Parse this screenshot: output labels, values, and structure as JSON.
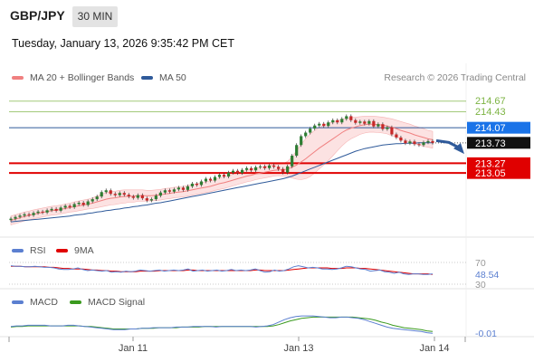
{
  "header": {
    "symbol": "GBP/JPY",
    "timeframe": "30 MIN",
    "datetime": "Tuesday, January 13, 2026 9:35:42 PM CET",
    "credit": "Research © 2026 Trading Central"
  },
  "colors": {
    "ma20": "#f08080",
    "ma50": "#2f5a9a",
    "band_fill": "#fbd5d5",
    "candle_up": "#2e7d32",
    "candle_down": "#c62828",
    "resistance": "#7cb342",
    "pivot": "#2f5a9a",
    "support": "#e00000",
    "price_tag": "#1a73e8",
    "rsi": "#5b7fd0",
    "ma9": "#e00000",
    "macd": "#5b7fd0",
    "macd_signal": "#3a9a1e",
    "arrow": "#2f5a9a"
  },
  "chart_data": [
    {
      "type": "candlestick",
      "title": "GBP/JPY 30 MIN",
      "legend": [
        "MA 20 + Bollinger Bands",
        "MA 50"
      ],
      "legend_position": "top-left",
      "x_tick_labels": [
        "Jan 11",
        "Jan 13",
        "Jan 14"
      ],
      "y_range": [
        211.85,
        214.95
      ],
      "grid": false,
      "levels": [
        {
          "label": "214.67",
          "value": 214.67,
          "kind": "resistance"
        },
        {
          "label": "214.43",
          "value": 214.43,
          "kind": "resistance"
        },
        {
          "label": "214.07",
          "value": 214.07,
          "kind": "pivot"
        },
        {
          "label": "213.27",
          "value": 213.27,
          "kind": "support"
        },
        {
          "label": "213.05",
          "value": 213.05,
          "kind": "support"
        }
      ],
      "last_price": {
        "label": "213.73",
        "value": 213.73
      },
      "forecast_arrow": {
        "from": 213.78,
        "to": 213.52,
        "direction": "down"
      },
      "close_values": [
        212.02,
        212.06,
        212.09,
        212.12,
        212.1,
        212.15,
        212.18,
        212.16,
        212.21,
        212.24,
        212.2,
        212.27,
        212.31,
        212.28,
        212.35,
        212.38,
        212.33,
        212.41,
        212.46,
        212.52,
        212.62,
        212.66,
        212.58,
        212.55,
        212.6,
        212.56,
        212.52,
        212.49,
        212.55,
        212.48,
        212.43,
        212.46,
        212.54,
        212.61,
        212.66,
        212.63,
        212.68,
        212.72,
        212.67,
        212.75,
        212.81,
        212.78,
        212.86,
        212.92,
        212.88,
        212.96,
        213.01,
        212.97,
        213.06,
        213.1,
        213.05,
        213.12,
        213.16,
        213.11,
        213.18,
        213.2,
        213.16,
        213.22,
        213.19,
        213.14,
        213.06,
        213.2,
        213.44,
        213.68,
        213.88,
        213.96,
        214.05,
        214.12,
        214.16,
        214.11,
        214.19,
        214.24,
        214.19,
        214.27,
        214.33,
        214.24,
        214.18,
        214.21,
        214.16,
        214.22,
        214.1,
        214.15,
        214.04,
        214.08,
        213.92,
        213.85,
        213.78,
        213.72,
        213.76,
        213.7,
        213.68,
        213.74,
        213.77,
        213.73
      ],
      "ma20": [
        211.98,
        212.01,
        212.04,
        212.07,
        212.09,
        212.12,
        212.14,
        212.16,
        212.18,
        212.2,
        212.21,
        212.23,
        212.25,
        212.27,
        212.29,
        212.31,
        212.33,
        212.35,
        212.37,
        212.4,
        212.43,
        212.46,
        212.48,
        212.49,
        212.51,
        212.52,
        212.53,
        212.53,
        212.54,
        212.54,
        212.54,
        212.54,
        212.55,
        212.56,
        212.58,
        212.59,
        212.61,
        212.62,
        212.63,
        212.65,
        212.67,
        212.69,
        212.71,
        212.73,
        212.75,
        212.78,
        212.81,
        212.83,
        212.86,
        212.89,
        212.92,
        212.95,
        212.98,
        213.0,
        213.03,
        213.05,
        213.07,
        213.09,
        213.11,
        213.12,
        213.12,
        213.14,
        213.18,
        213.23,
        213.3,
        213.37,
        213.45,
        213.53,
        213.61,
        213.68,
        213.75,
        213.82,
        213.89,
        213.96,
        214.02,
        214.06,
        214.09,
        214.12,
        214.14,
        214.15,
        214.15,
        214.14,
        214.13,
        214.11,
        214.08,
        214.05,
        214.01,
        213.98,
        213.95,
        213.91,
        213.88,
        213.85,
        213.82,
        213.8
      ],
      "band_width": [
        0.1,
        0.1,
        0.1,
        0.1,
        0.1,
        0.1,
        0.1,
        0.1,
        0.1,
        0.1,
        0.1,
        0.1,
        0.1,
        0.1,
        0.11,
        0.11,
        0.11,
        0.11,
        0.12,
        0.13,
        0.14,
        0.15,
        0.15,
        0.15,
        0.15,
        0.15,
        0.14,
        0.14,
        0.13,
        0.13,
        0.12,
        0.12,
        0.12,
        0.12,
        0.12,
        0.12,
        0.12,
        0.12,
        0.12,
        0.12,
        0.12,
        0.12,
        0.12,
        0.12,
        0.12,
        0.12,
        0.13,
        0.13,
        0.13,
        0.13,
        0.13,
        0.13,
        0.13,
        0.13,
        0.13,
        0.13,
        0.13,
        0.13,
        0.13,
        0.13,
        0.14,
        0.17,
        0.24,
        0.32,
        0.4,
        0.45,
        0.48,
        0.48,
        0.47,
        0.45,
        0.42,
        0.38,
        0.34,
        0.3,
        0.27,
        0.24,
        0.22,
        0.2,
        0.19,
        0.18,
        0.18,
        0.18,
        0.18,
        0.18,
        0.19,
        0.19,
        0.2,
        0.2,
        0.2,
        0.2,
        0.2,
        0.2,
        0.19,
        0.19
      ],
      "ma50": [
        211.95,
        211.96,
        211.97,
        211.98,
        211.99,
        212.0,
        212.01,
        212.02,
        212.03,
        212.04,
        212.05,
        212.06,
        212.07,
        212.08,
        212.1,
        212.11,
        212.12,
        212.14,
        212.15,
        212.17,
        212.18,
        212.2,
        212.21,
        212.23,
        212.24,
        212.26,
        212.27,
        212.29,
        212.3,
        212.32,
        212.33,
        212.35,
        212.37,
        212.38,
        212.4,
        212.42,
        212.44,
        212.46,
        212.48,
        212.5,
        212.52,
        212.54,
        212.56,
        212.58,
        212.6,
        212.62,
        212.64,
        212.66,
        212.68,
        212.7,
        212.72,
        212.74,
        212.76,
        212.78,
        212.8,
        212.82,
        212.84,
        212.86,
        212.88,
        212.9,
        212.92,
        212.95,
        212.98,
        213.02,
        213.06,
        213.1,
        213.14,
        213.18,
        213.22,
        213.26,
        213.3,
        213.34,
        213.38,
        213.42,
        213.46,
        213.5,
        213.54,
        213.57,
        213.6,
        213.62,
        213.64,
        213.66,
        213.68,
        213.69,
        213.7,
        213.71,
        213.71,
        213.72,
        213.72,
        213.72,
        213.73,
        213.73,
        213.73,
        213.73
      ]
    },
    {
      "type": "line",
      "legend": [
        "RSI",
        "9MA"
      ],
      "y_tick_labels": [
        "70",
        "30"
      ],
      "last_value": {
        "label": "48.54",
        "value": 48.54
      },
      "rsi": [
        64,
        63,
        63,
        62,
        62,
        63,
        62,
        61,
        61,
        60,
        58,
        57,
        57,
        58,
        60,
        57,
        55,
        56,
        55,
        54,
        55,
        52,
        53,
        52,
        54,
        53,
        54,
        56,
        55,
        54,
        55,
        56,
        54,
        55,
        56,
        55,
        56,
        58,
        54,
        55,
        56,
        54,
        55,
        56,
        54,
        55,
        57,
        55,
        56,
        55,
        56,
        58,
        55,
        52,
        53,
        56,
        54,
        55,
        58,
        62,
        64,
        62,
        60,
        61,
        60,
        58,
        58,
        57,
        58,
        60,
        63,
        62,
        60,
        58,
        57,
        54,
        55,
        56,
        53,
        52,
        50,
        52,
        49,
        48,
        49,
        49,
        48,
        48,
        49
      ],
      "ma9": [
        63,
        63,
        63,
        62,
        62,
        62,
        62,
        62,
        61,
        61,
        60,
        59,
        59,
        58,
        58,
        58,
        57,
        56,
        56,
        55,
        55,
        54,
        54,
        53,
        53,
        53,
        53,
        54,
        54,
        54,
        54,
        55,
        55,
        55,
        55,
        55,
        55,
        56,
        56,
        55,
        55,
        55,
        55,
        55,
        55,
        55,
        55,
        55,
        55,
        55,
        55,
        56,
        56,
        55,
        55,
        55,
        55,
        55,
        56,
        57,
        58,
        59,
        60,
        60,
        60,
        60,
        60,
        59,
        59,
        59,
        60,
        60,
        60,
        59,
        59,
        58,
        57,
        56,
        55,
        54,
        53,
        52,
        51,
        50,
        49,
        49,
        49,
        49,
        48
      ]
    },
    {
      "type": "line",
      "legend": [
        "MACD",
        "MACD Signal"
      ],
      "last_value": {
        "label": "-0.01",
        "value": -0.01
      },
      "macd": [
        0.1,
        0.11,
        0.11,
        0.12,
        0.12,
        0.12,
        0.12,
        0.11,
        0.11,
        0.11,
        0.12,
        0.12,
        0.11,
        0.1,
        0.09,
        0.08,
        0.07,
        0.06,
        0.05,
        0.05,
        0.05,
        0.06,
        0.06,
        0.07,
        0.07,
        0.08,
        0.08,
        0.08,
        0.08,
        0.09,
        0.09,
        0.09,
        0.1,
        0.1,
        0.1,
        0.1,
        0.09,
        0.1,
        0.1,
        0.1,
        0.1,
        0.1,
        0.1,
        0.09,
        0.1,
        0.11,
        0.13,
        0.17,
        0.21,
        0.24,
        0.26,
        0.27,
        0.27,
        0.27,
        0.26,
        0.25,
        0.24,
        0.24,
        0.25,
        0.25,
        0.24,
        0.23,
        0.21,
        0.18,
        0.15,
        0.12,
        0.09,
        0.07,
        0.06,
        0.05,
        0.04,
        0.03,
        0.02,
        0.0,
        -0.01
      ],
      "signal": [
        0.09,
        0.1,
        0.1,
        0.11,
        0.11,
        0.11,
        0.11,
        0.11,
        0.11,
        0.11,
        0.11,
        0.11,
        0.11,
        0.1,
        0.1,
        0.09,
        0.08,
        0.07,
        0.06,
        0.06,
        0.06,
        0.06,
        0.06,
        0.07,
        0.07,
        0.07,
        0.08,
        0.08,
        0.08,
        0.08,
        0.09,
        0.09,
        0.09,
        0.09,
        0.1,
        0.1,
        0.1,
        0.1,
        0.1,
        0.1,
        0.1,
        0.1,
        0.1,
        0.1,
        0.1,
        0.1,
        0.11,
        0.13,
        0.16,
        0.19,
        0.21,
        0.23,
        0.24,
        0.25,
        0.25,
        0.25,
        0.25,
        0.25,
        0.25,
        0.25,
        0.25,
        0.24,
        0.23,
        0.22,
        0.2,
        0.17,
        0.15,
        0.12,
        0.1,
        0.08,
        0.07,
        0.06,
        0.05,
        0.03,
        0.02
      ]
    }
  ]
}
